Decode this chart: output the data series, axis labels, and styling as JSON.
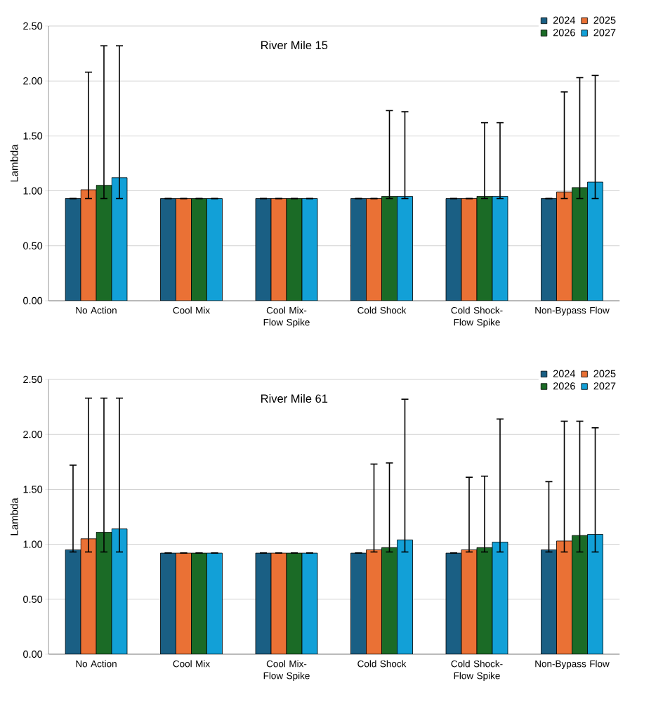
{
  "chart_data": [
    {
      "type": "bar",
      "title": "River Mile 15",
      "ylabel": "Lambda",
      "categories": [
        "No Action",
        "Cool Mix",
        "Cool Mix-Flow Spike",
        "Cold Shock",
        "Cold Shock-Flow Spike",
        "Non-Bypass Flow"
      ],
      "series": [
        {
          "name": "2024",
          "color": "#1a5f84",
          "values": [
            0.93,
            0.93,
            0.93,
            0.93,
            0.93,
            0.93
          ],
          "errors": [
            null,
            null,
            null,
            null,
            null,
            null
          ]
        },
        {
          "name": "2025",
          "color": "#ea7135",
          "values": [
            1.01,
            0.93,
            0.93,
            0.93,
            0.93,
            0.99
          ],
          "errors": [
            [
              0.93,
              2.08
            ],
            null,
            null,
            null,
            null,
            [
              0.93,
              1.9
            ]
          ]
        },
        {
          "name": "2026",
          "color": "#1b6b26",
          "values": [
            1.05,
            0.93,
            0.93,
            0.95,
            0.95,
            1.03
          ],
          "errors": [
            [
              0.93,
              2.32
            ],
            null,
            null,
            [
              0.93,
              1.73
            ],
            [
              0.93,
              1.62
            ],
            [
              0.93,
              2.03
            ]
          ]
        },
        {
          "name": "2027",
          "color": "#12a0d7",
          "values": [
            1.12,
            0.93,
            0.93,
            0.95,
            0.95,
            1.08
          ],
          "errors": [
            [
              0.93,
              2.32
            ],
            null,
            null,
            [
              0.93,
              1.72
            ],
            [
              0.93,
              1.62
            ],
            [
              0.93,
              2.05
            ]
          ]
        }
      ],
      "ylim": [
        0,
        2.5
      ],
      "yticks": [
        {
          "value": 0,
          "label": "0.00"
        },
        {
          "value": 0.5,
          "label": "0.50"
        },
        {
          "value": 1,
          "label": "1.00"
        },
        {
          "value": 1.5,
          "label": "1.50"
        },
        {
          "value": 2,
          "label": "2.00"
        },
        {
          "value": 2.5,
          "label": "2.50"
        }
      ],
      "grid": "y",
      "legend": "top right"
    },
    {
      "type": "bar",
      "title": "River Mile 61",
      "ylabel": "Lambda",
      "categories": [
        "No Action",
        "Cool Mix",
        "Cool Mix-Flow Spike",
        "Cold Shock",
        "Cold Shock-Flow Spike",
        "Non-Bypass Flow"
      ],
      "series": [
        {
          "name": "2024",
          "color": "#1a5f84",
          "values": [
            0.95,
            0.92,
            0.92,
            0.92,
            0.92,
            0.95
          ],
          "errors": [
            [
              0.93,
              1.72
            ],
            null,
            null,
            null,
            null,
            [
              0.93,
              1.57
            ]
          ]
        },
        {
          "name": "2025",
          "color": "#ea7135",
          "values": [
            1.05,
            0.92,
            0.92,
            0.95,
            0.95,
            1.03
          ],
          "errors": [
            [
              0.93,
              2.33
            ],
            null,
            null,
            [
              0.93,
              1.73
            ],
            [
              0.93,
              1.61
            ],
            [
              0.93,
              2.12
            ]
          ]
        },
        {
          "name": "2026",
          "color": "#1b6b26",
          "values": [
            1.11,
            0.92,
            0.92,
            0.97,
            0.97,
            1.08
          ],
          "errors": [
            [
              0.93,
              2.33
            ],
            null,
            null,
            [
              0.93,
              1.74
            ],
            [
              0.93,
              1.62
            ],
            [
              0.93,
              2.12
            ]
          ]
        },
        {
          "name": "2027",
          "color": "#12a0d7",
          "values": [
            1.14,
            0.92,
            0.92,
            1.04,
            1.02,
            1.09
          ],
          "errors": [
            [
              0.93,
              2.33
            ],
            null,
            null,
            [
              0.93,
              2.32
            ],
            [
              0.93,
              2.14
            ],
            [
              0.93,
              2.06
            ]
          ]
        }
      ],
      "ylim": [
        0,
        2.5
      ],
      "yticks": [
        {
          "value": 0,
          "label": "0.00"
        },
        {
          "value": 0.5,
          "label": "0.50"
        },
        {
          "value": 1,
          "label": "1.00"
        },
        {
          "value": 1.5,
          "label": "1.50"
        },
        {
          "value": 2,
          "label": "2.00"
        },
        {
          "value": 2.5,
          "label": "2.50"
        }
      ],
      "grid": "y",
      "legend": "top right"
    }
  ]
}
